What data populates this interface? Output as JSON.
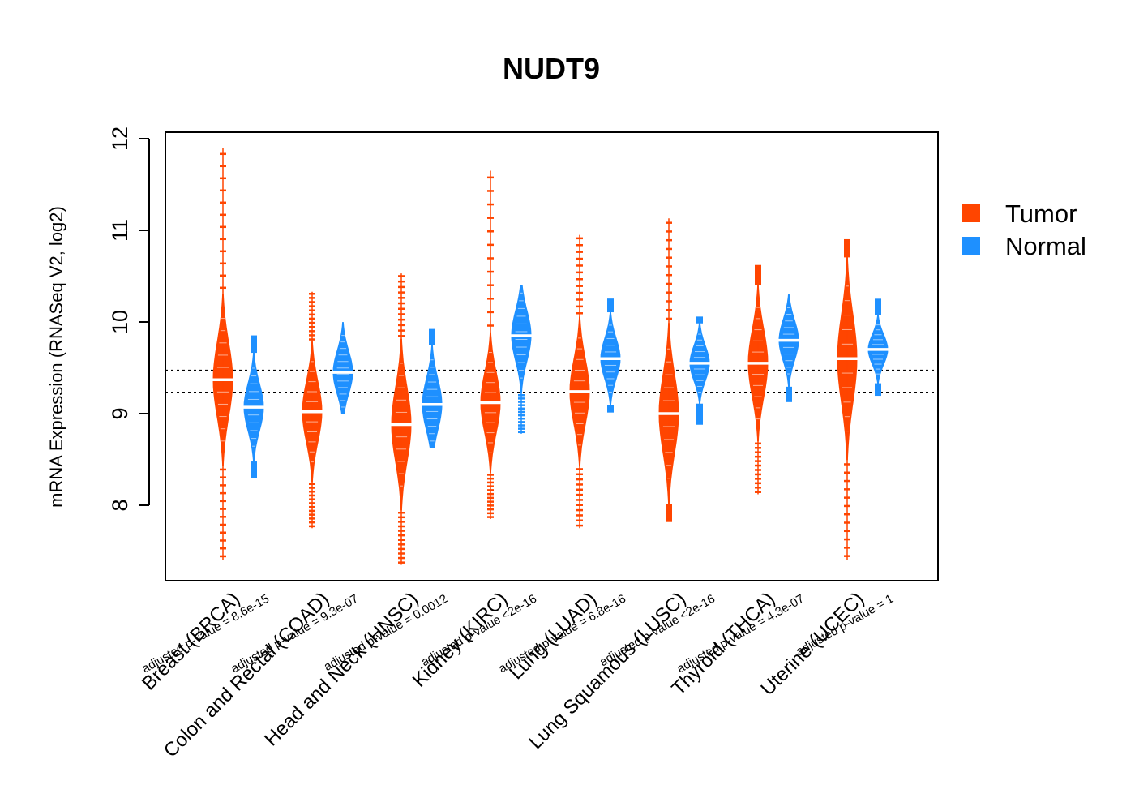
{
  "chart_data": {
    "type": "beanplot",
    "title": "NUDT9",
    "xlabel": "",
    "ylabel": "mRNA Expression (RNASeq V2, log2)",
    "ylim": [
      7.4,
      12.05
    ],
    "yticks": [
      "8",
      "9",
      "10",
      "11",
      "12"
    ],
    "reference_lines": [
      9.23,
      9.47
    ],
    "colors": {
      "Tumor": "#FF4500",
      "Normal": "#1E90FF"
    },
    "legend": {
      "position": "right",
      "entries": [
        "Tumor",
        "Normal"
      ]
    },
    "categories": [
      {
        "name": "Breast (BRCA)",
        "p_label": "adjusted p-value = 8.6e-15",
        "tumor": {
          "median": 9.37,
          "q1": 9.1,
          "q3": 9.65,
          "min": 7.4,
          "max": 11.9
        },
        "normal": {
          "median": 9.07,
          "q1": 8.9,
          "q3": 9.25,
          "min": 8.3,
          "max": 9.85
        }
      },
      {
        "name": "Colon and Rectal (COAD)",
        "p_label": "adjusted p-value = 9.3e-07",
        "tumor": {
          "median": 9.02,
          "q1": 8.8,
          "q3": 9.25,
          "min": 7.75,
          "max": 10.33
        },
        "normal": {
          "median": 9.45,
          "q1": 9.3,
          "q3": 9.62,
          "min": 9.0,
          "max": 10.0
        }
      },
      {
        "name": "Head and Neck (HNSC)",
        "p_label": "adjusted p-value = 0.0012",
        "tumor": {
          "median": 8.88,
          "q1": 8.6,
          "q3": 9.15,
          "min": 7.35,
          "max": 10.53
        },
        "normal": {
          "median": 9.1,
          "q1": 8.9,
          "q3": 9.28,
          "min": 8.62,
          "max": 9.92
        }
      },
      {
        "name": "Kidney (KIRC)",
        "p_label": "adjusted p-value <2e-16",
        "tumor": {
          "median": 9.12,
          "q1": 8.9,
          "q3": 9.35,
          "min": 7.85,
          "max": 11.65
        },
        "normal": {
          "median": 9.85,
          "q1": 9.65,
          "q3": 10.02,
          "min": 8.78,
          "max": 10.4
        }
      },
      {
        "name": "Lung (LUAD)",
        "p_label": "adjusted p-value = 6.8e-16",
        "tumor": {
          "median": 9.24,
          "q1": 9.0,
          "q3": 9.48,
          "min": 7.75,
          "max": 10.95
        },
        "normal": {
          "median": 9.6,
          "q1": 9.45,
          "q3": 9.75,
          "min": 9.02,
          "max": 10.25
        }
      },
      {
        "name": "Lung Squamous (LUSC)",
        "p_label": "adjusted p-value <2e-16",
        "tumor": {
          "median": 9.0,
          "q1": 8.72,
          "q3": 9.3,
          "min": 7.82,
          "max": 11.13
        },
        "normal": {
          "median": 9.55,
          "q1": 9.42,
          "q3": 9.68,
          "min": 8.88,
          "max": 10.05
        }
      },
      {
        "name": "Thyroid (THCA)",
        "p_label": "adjusted p-value = 4.3e-07",
        "tumor": {
          "median": 9.55,
          "q1": 9.3,
          "q3": 9.8,
          "min": 8.12,
          "max": 10.62
        },
        "normal": {
          "median": 9.8,
          "q1": 9.65,
          "q3": 9.95,
          "min": 9.13,
          "max": 10.3
        }
      },
      {
        "name": "Uterine (UCEC)",
        "p_label": "adjusted p-value = 1",
        "tumor": {
          "median": 9.6,
          "q1": 9.3,
          "q3": 9.95,
          "min": 7.4,
          "max": 10.9
        },
        "normal": {
          "median": 9.7,
          "q1": 9.58,
          "q3": 9.8,
          "min": 9.2,
          "max": 10.25
        }
      }
    ]
  }
}
